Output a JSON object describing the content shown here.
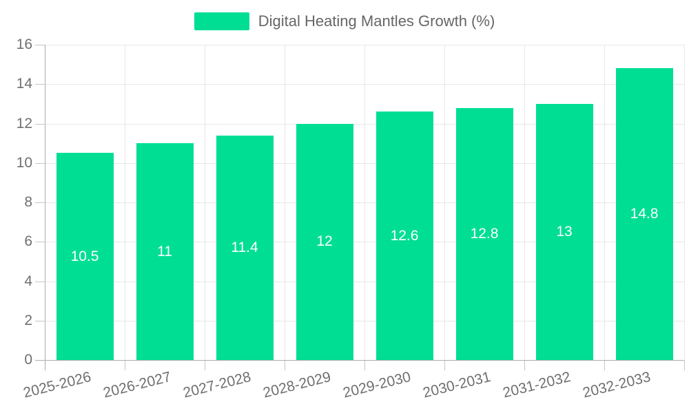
{
  "chart_data": {
    "type": "bar",
    "title": "Digital Heating Mantles Growth (%)",
    "legend": {
      "label": "Digital Heating Mantles Growth (%)",
      "position": "top"
    },
    "categories": [
      "2025-2026",
      "2026-2027",
      "2027-2028",
      "2028-2029",
      "2029-2030",
      "2030-2031",
      "2031-2032",
      "2032-2033"
    ],
    "values": [
      10.5,
      11,
      11.4,
      12,
      12.6,
      12.8,
      13,
      14.8
    ],
    "bar_labels": [
      "10.5",
      "11",
      "11.4",
      "12",
      "12.6",
      "12.8",
      "13",
      "14.8"
    ],
    "xlabel": "",
    "ylabel": "",
    "ylim": [
      0,
      16
    ],
    "yticks": [
      0,
      2,
      4,
      6,
      8,
      10,
      12,
      14,
      16
    ],
    "grid": true,
    "x_label_rotation_deg": -14
  },
  "colors": {
    "bar": "#00DE94",
    "legend_text": "#666666",
    "axis_text": "#6F6F6F",
    "grid": "#E7E7E7",
    "axis_line": "#ADADAD",
    "tick": "#C6C6C6",
    "bar_label": "#FFFFFF",
    "background": "#FFFFFF"
  }
}
